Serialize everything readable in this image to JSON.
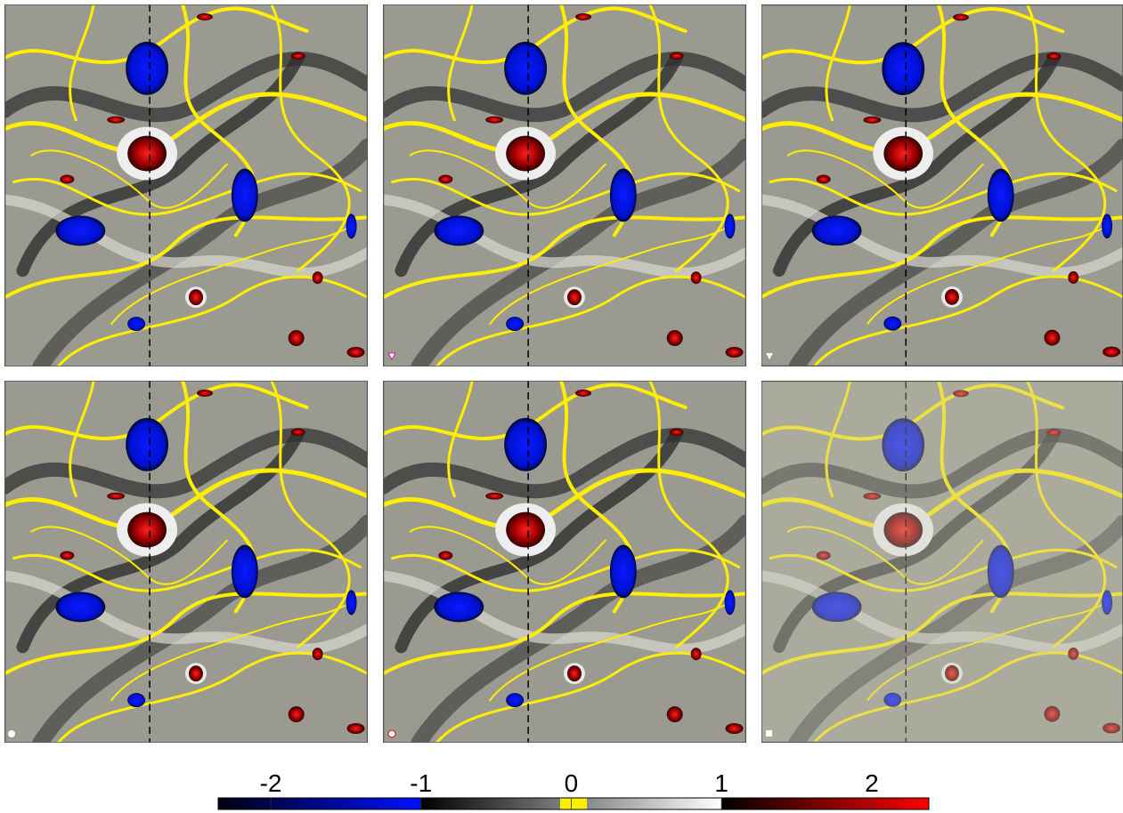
{
  "chart_data": {
    "type": "colorbar",
    "xlim": [
      -2.35,
      2.38
    ],
    "xticks": [
      -2,
      -1,
      0,
      1,
      2
    ]
  }
}
